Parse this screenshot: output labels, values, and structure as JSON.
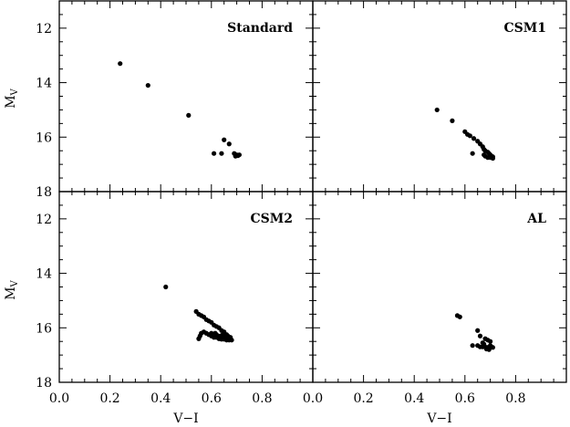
{
  "chart_data": {
    "type": "scatter",
    "xlabel": "V−I",
    "ylabel_main": "M",
    "ylabel_sub": "V",
    "xlim": [
      0.0,
      1.0
    ],
    "ylim": [
      18,
      11
    ],
    "x_ticks": [
      "0.0",
      "0.2",
      "0.4",
      "0.6",
      "0.8"
    ],
    "x_tick_values": [
      0.0,
      0.2,
      0.4,
      0.6,
      0.8
    ],
    "y_ticks": [
      "12",
      "14",
      "16",
      "18"
    ],
    "y_tick_values": [
      12,
      14,
      16,
      18
    ],
    "y_inverted": true,
    "panels": [
      {
        "label": "Standard",
        "points": [
          [
            0.24,
            13.3
          ],
          [
            0.35,
            14.1
          ],
          [
            0.51,
            15.2
          ],
          [
            0.65,
            16.1
          ],
          [
            0.67,
            16.25
          ],
          [
            0.61,
            16.6
          ],
          [
            0.64,
            16.6
          ],
          [
            0.69,
            16.6
          ],
          [
            0.7,
            16.65
          ],
          [
            0.71,
            16.65
          ],
          [
            0.695,
            16.7
          ],
          [
            0.705,
            16.68
          ]
        ]
      },
      {
        "label": "CSM1",
        "points": [
          [
            0.49,
            15.0
          ],
          [
            0.55,
            15.4
          ],
          [
            0.6,
            15.8
          ],
          [
            0.61,
            15.9
          ],
          [
            0.62,
            15.95
          ],
          [
            0.635,
            16.05
          ],
          [
            0.65,
            16.15
          ],
          [
            0.66,
            16.25
          ],
          [
            0.67,
            16.35
          ],
          [
            0.675,
            16.45
          ],
          [
            0.68,
            16.5
          ],
          [
            0.69,
            16.55
          ],
          [
            0.695,
            16.6
          ],
          [
            0.7,
            16.65
          ],
          [
            0.705,
            16.7
          ],
          [
            0.71,
            16.72
          ],
          [
            0.69,
            16.75
          ],
          [
            0.7,
            16.75
          ],
          [
            0.68,
            16.7
          ],
          [
            0.675,
            16.65
          ],
          [
            0.63,
            16.6
          ],
          [
            0.71,
            16.78
          ]
        ]
      },
      {
        "label": "CSM2",
        "points": [
          [
            0.42,
            14.5
          ],
          [
            0.54,
            15.4
          ],
          [
            0.55,
            15.5
          ],
          [
            0.56,
            15.55
          ],
          [
            0.57,
            15.6
          ],
          [
            0.58,
            15.7
          ],
          [
            0.59,
            15.75
          ],
          [
            0.6,
            15.8
          ],
          [
            0.61,
            15.9
          ],
          [
            0.62,
            15.95
          ],
          [
            0.63,
            16.0
          ],
          [
            0.64,
            16.1
          ],
          [
            0.65,
            16.15
          ],
          [
            0.66,
            16.25
          ],
          [
            0.665,
            16.3
          ],
          [
            0.67,
            16.35
          ],
          [
            0.675,
            16.4
          ],
          [
            0.68,
            16.45
          ],
          [
            0.555,
            16.3
          ],
          [
            0.56,
            16.2
          ],
          [
            0.57,
            16.15
          ],
          [
            0.58,
            16.2
          ],
          [
            0.59,
            16.25
          ],
          [
            0.6,
            16.3
          ],
          [
            0.61,
            16.35
          ],
          [
            0.62,
            16.35
          ],
          [
            0.63,
            16.4
          ],
          [
            0.64,
            16.42
          ],
          [
            0.65,
            16.42
          ],
          [
            0.66,
            16.45
          ],
          [
            0.67,
            16.45
          ],
          [
            0.55,
            16.4
          ],
          [
            0.6,
            16.2
          ],
          [
            0.62,
            16.25
          ],
          [
            0.635,
            16.3
          ],
          [
            0.645,
            16.25
          ],
          [
            0.655,
            16.35
          ],
          [
            0.66,
            16.4
          ],
          [
            0.675,
            16.35
          ],
          [
            0.64,
            16.35
          ],
          [
            0.625,
            16.3
          ],
          [
            0.615,
            16.2
          ]
        ]
      },
      {
        "label": "AL",
        "points": [
          [
            0.57,
            15.55
          ],
          [
            0.58,
            15.6
          ],
          [
            0.65,
            16.1
          ],
          [
            0.66,
            16.3
          ],
          [
            0.68,
            16.4
          ],
          [
            0.69,
            16.45
          ],
          [
            0.67,
            16.55
          ],
          [
            0.7,
            16.5
          ],
          [
            0.63,
            16.65
          ],
          [
            0.65,
            16.65
          ],
          [
            0.66,
            16.7
          ],
          [
            0.67,
            16.7
          ],
          [
            0.68,
            16.7
          ],
          [
            0.69,
            16.72
          ],
          [
            0.7,
            16.7
          ],
          [
            0.71,
            16.72
          ],
          [
            0.685,
            16.78
          ],
          [
            0.695,
            16.8
          ],
          [
            0.7,
            16.65
          ],
          [
            0.675,
            16.6
          ]
        ]
      }
    ]
  }
}
